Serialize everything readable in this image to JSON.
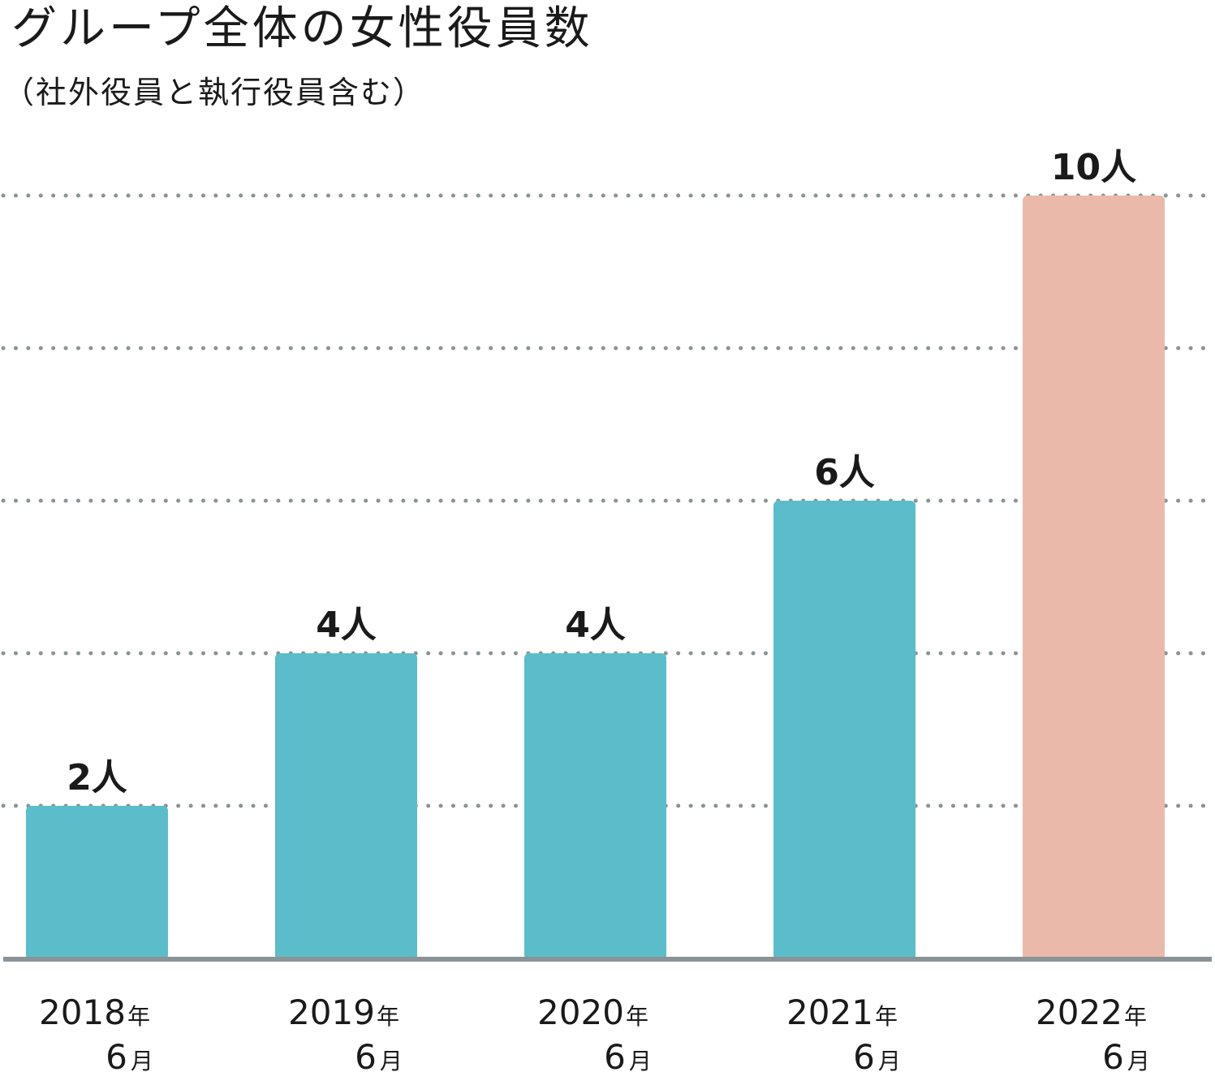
{
  "chart_data": {
    "type": "bar",
    "title": "グループ全体の女性役員数",
    "subtitle": "（社外役員と執行役員含む）",
    "categories": [
      {
        "year": "2018",
        "year_unit": "年",
        "month": "6",
        "month_unit": "月"
      },
      {
        "year": "2019",
        "year_unit": "年",
        "month": "6",
        "month_unit": "月"
      },
      {
        "year": "2020",
        "year_unit": "年",
        "month": "6",
        "month_unit": "月"
      },
      {
        "year": "2021",
        "year_unit": "年",
        "month": "6",
        "month_unit": "月"
      },
      {
        "year": "2022",
        "year_unit": "年",
        "month": "6",
        "month_unit": "月"
      }
    ],
    "values": [
      2,
      4,
      4,
      6,
      10
    ],
    "value_labels": [
      "2人",
      "4人",
      "4人",
      "6人",
      "10人"
    ],
    "bar_colors": [
      "#5bbdc9",
      "#5bbdc9",
      "#5bbdc9",
      "#5bbdc9",
      "#eab9aa"
    ],
    "ylim": [
      0,
      10
    ],
    "gridlines_at": [
      2,
      4,
      6,
      8,
      10
    ],
    "grid": true,
    "grid_style": "dotted",
    "grid_color": "#8a9396",
    "axis_color": "#8a9396",
    "legend": "none"
  }
}
